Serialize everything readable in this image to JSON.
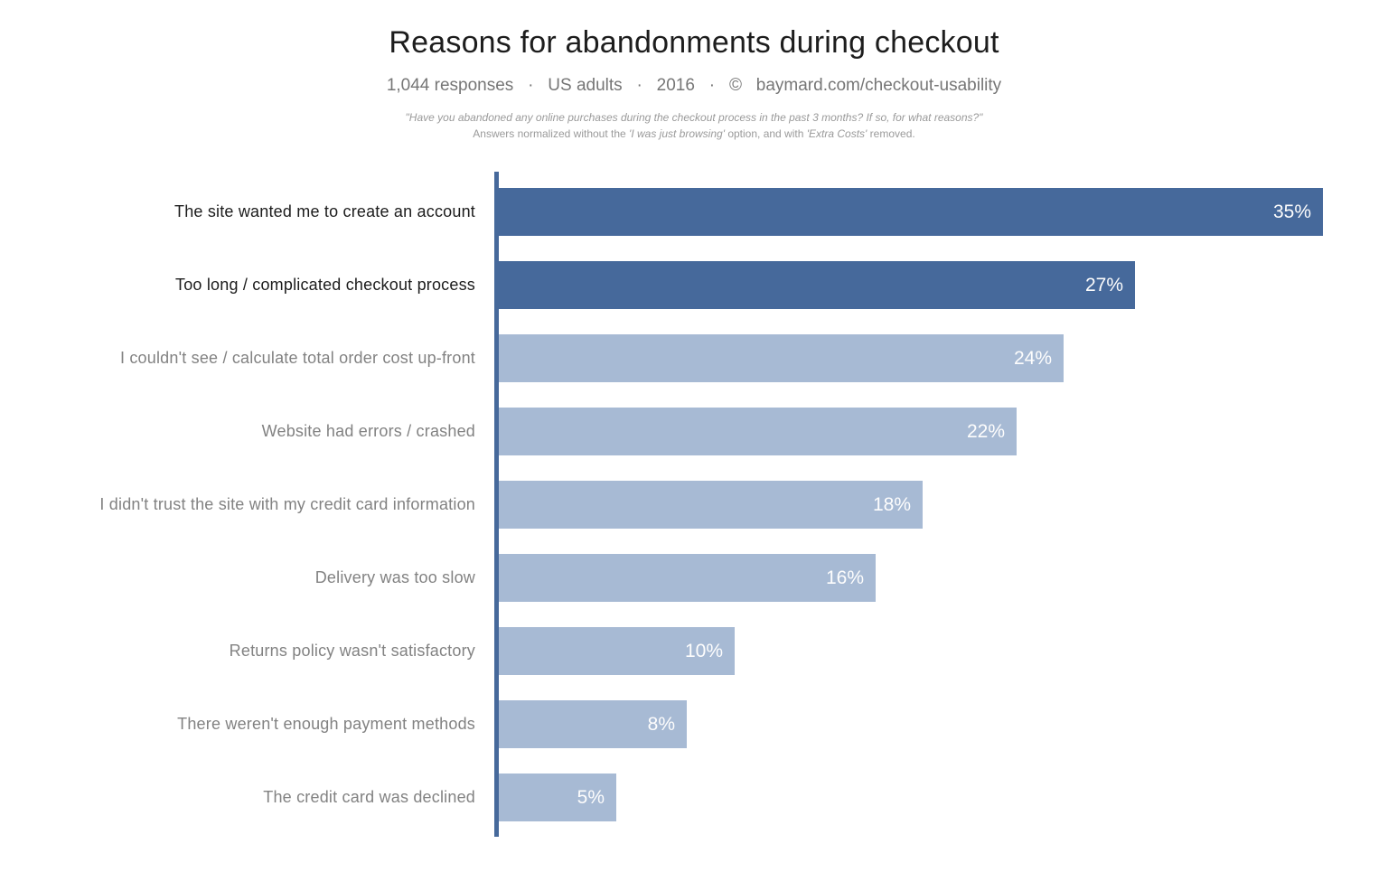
{
  "header": {
    "title": "Reasons for abandonments during checkout",
    "subtitle": "1,044 responses   ·   US adults   ·   2016   ·   ©   baymard.com/checkout-usability",
    "footnote_line1": "\"Have you abandoned any online purchases during the checkout process in the past 3 months? If so, for what reasons?\"",
    "footnote_line2": {
      "part1": "Answers normalized without the ",
      "part2_italic": "'I was just browsing'",
      "part3": " option, and with ",
      "part4_italic": "'Extra Costs'",
      "part5": " removed."
    }
  },
  "chart_data": {
    "type": "bar",
    "orientation": "horizontal",
    "title": "Reasons for abandonments during checkout",
    "xlabel": "",
    "ylabel": "",
    "xlim": [
      0,
      35
    ],
    "grid": false,
    "legend": "none",
    "value_unit": "percent",
    "colors": {
      "bar_emphasized": "#46699b",
      "bar_normal": "#a7bad4",
      "axis_line": "#46699b",
      "value_label_text": "#fdfdfd",
      "category_label_emphasized": "#1c1c1c",
      "category_label_normal": "#828282"
    },
    "items": [
      {
        "label": "The site wanted me to create an account",
        "value": 35,
        "display": "35%",
        "emphasized": true
      },
      {
        "label": "Too long / complicated checkout process",
        "value": 27,
        "display": "27%",
        "emphasized": true
      },
      {
        "label": "I couldn't see / calculate total order cost up-front",
        "value": 24,
        "display": "24%",
        "emphasized": false
      },
      {
        "label": "Website had errors / crashed",
        "value": 22,
        "display": "22%",
        "emphasized": false
      },
      {
        "label": "I didn't trust the site with my credit card information",
        "value": 18,
        "display": "18%",
        "emphasized": false
      },
      {
        "label": "Delivery was too slow",
        "value": 16,
        "display": "16%",
        "emphasized": false
      },
      {
        "label": "Returns policy wasn't satisfactory",
        "value": 10,
        "display": "10%",
        "emphasized": false
      },
      {
        "label": "There weren't enough payment methods",
        "value": 8,
        "display": "8%",
        "emphasized": false
      },
      {
        "label": "The credit card was declined",
        "value": 5,
        "display": "5%",
        "emphasized": false
      }
    ]
  }
}
